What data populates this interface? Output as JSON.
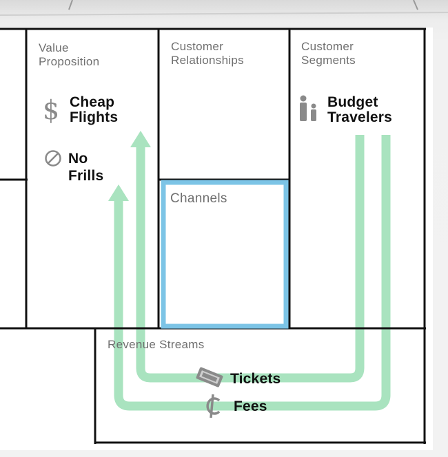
{
  "canvas": {
    "labels": {
      "value_proposition": "Value\nProposition",
      "customer_relationships": "Customer\nRelationships",
      "customer_segments": "Customer\nSegments",
      "channels": "Channels",
      "revenue_streams": "Revenue Streams"
    },
    "items": {
      "cheap_flights": "Cheap\nFlights",
      "no_frills": "No\nFrills",
      "budget_travelers": "Budget\nTravelers",
      "tickets": "Tickets",
      "fees": "Fees"
    },
    "icons": {
      "cheap_flights": "dollar-icon",
      "no_frills": "prohibited-icon",
      "budget_travelers": "people-icon",
      "tickets": "ticket-icon",
      "fees": "cent-icon"
    }
  },
  "colors": {
    "flow_arrow": "#a9e3bf",
    "channels_highlight": "#7cc4e6",
    "grid_line": "#111111"
  }
}
